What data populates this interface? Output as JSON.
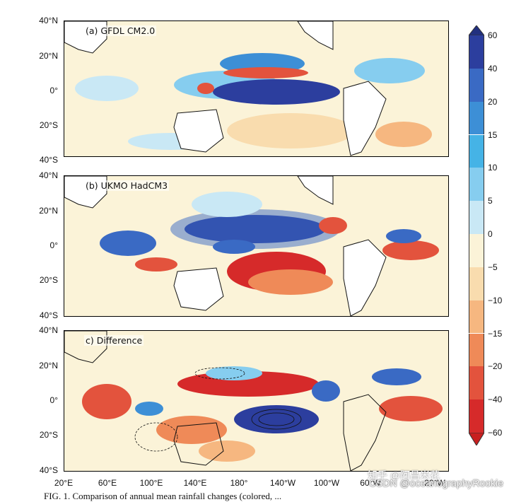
{
  "panels": [
    {
      "label": "(a) GFDL CM2.0"
    },
    {
      "label": "(b) UKMO HadCM3"
    },
    {
      "label": "c) Difference"
    }
  ],
  "lat_ticks": [
    "40°N",
    "20°N",
    "0°",
    "20°S",
    "40°S"
  ],
  "lon_ticks": [
    "20°E",
    "60°E",
    "100°E",
    "140°E",
    "180°",
    "140°W",
    "100°W",
    "60°W",
    "20°W"
  ],
  "colorbar": {
    "ticks": [
      "60",
      "40",
      "20",
      "15",
      "10",
      "5",
      "0",
      "−5",
      "−10",
      "−15",
      "−20",
      "−40",
      "−60"
    ],
    "colors": [
      "#2c3e9e",
      "#3a6ac4",
      "#3d8fd6",
      "#45b3e6",
      "#86cdef",
      "#c9e8f5",
      "#fbf3d8",
      "#f9dcae",
      "#f6b780",
      "#ef8a58",
      "#e3533d",
      "#d62a2a"
    ]
  },
  "caption": "FIG. 1. Comparison of annual mean rainfall changes (colored, ...",
  "watermark": {
    "zhihu": "知乎 @阿昌米花",
    "csdn": "CSDN @oceanographyRookie"
  }
}
